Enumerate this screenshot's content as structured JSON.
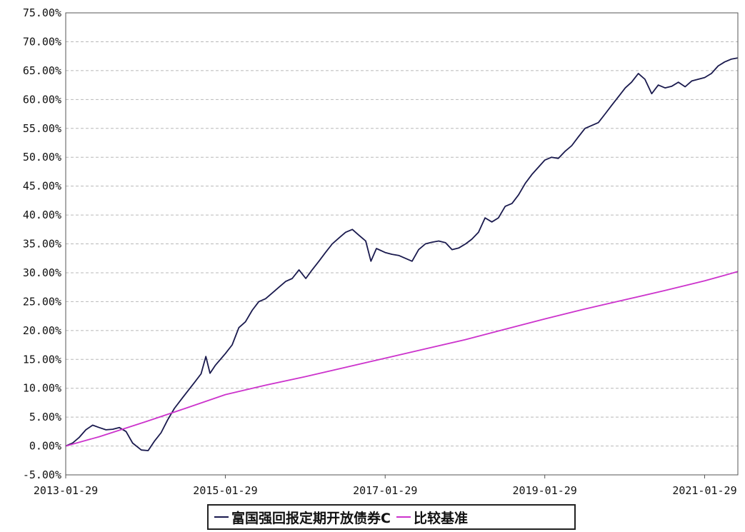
{
  "chart_data": {
    "type": "line",
    "title": "",
    "xlabel": "",
    "ylabel": "",
    "x_range": [
      "2013-01-29",
      "2021-06-30"
    ],
    "ylim": [
      -5,
      75
    ],
    "y_ticks": [
      "75.00%",
      "70.00%",
      "65.00%",
      "60.00%",
      "55.00%",
      "50.00%",
      "45.00%",
      "40.00%",
      "35.00%",
      "30.00%",
      "25.00%",
      "20.00%",
      "15.00%",
      "10.00%",
      "5.00%",
      "0.00%",
      "-5.00%"
    ],
    "x_ticks": [
      "2013-01-29",
      "2015-01-29",
      "2017-01-29",
      "2019-01-29",
      "2021-01-29"
    ],
    "grid": "horizontal dashed",
    "legend_position": "bottom",
    "series": [
      {
        "name": "富国强回报定期开放债券C",
        "color": "#1a1a4e",
        "points": [
          [
            "2013-01-29",
            0.0
          ],
          [
            "2013-03-01",
            0.5
          ],
          [
            "2013-04-01",
            1.5
          ],
          [
            "2013-05-01",
            2.8
          ],
          [
            "2013-06-01",
            3.6
          ],
          [
            "2013-07-01",
            3.2
          ],
          [
            "2013-08-01",
            2.8
          ],
          [
            "2013-09-01",
            2.9
          ],
          [
            "2013-10-01",
            3.2
          ],
          [
            "2013-11-01",
            2.5
          ],
          [
            "2013-12-01",
            0.5
          ],
          [
            "2014-01-10",
            -0.7
          ],
          [
            "2014-02-10",
            -0.8
          ],
          [
            "2014-03-10",
            0.8
          ],
          [
            "2014-04-10",
            2.3
          ],
          [
            "2014-05-10",
            4.5
          ],
          [
            "2014-06-10",
            6.5
          ],
          [
            "2014-07-10",
            8.0
          ],
          [
            "2014-08-10",
            9.5
          ],
          [
            "2014-09-10",
            11.0
          ],
          [
            "2014-10-10",
            12.5
          ],
          [
            "2014-11-01",
            15.5
          ],
          [
            "2014-11-20",
            12.6
          ],
          [
            "2014-12-15",
            14.0
          ],
          [
            "2015-01-29",
            16.0
          ],
          [
            "2015-03-01",
            17.5
          ],
          [
            "2015-04-01",
            20.5
          ],
          [
            "2015-05-01",
            21.5
          ],
          [
            "2015-06-01",
            23.5
          ],
          [
            "2015-07-01",
            25.0
          ],
          [
            "2015-08-01",
            25.5
          ],
          [
            "2015-09-01",
            26.5
          ],
          [
            "2015-10-01",
            27.5
          ],
          [
            "2015-11-01",
            28.5
          ],
          [
            "2015-12-01",
            29.0
          ],
          [
            "2016-01-01",
            30.5
          ],
          [
            "2016-02-01",
            29.0
          ],
          [
            "2016-03-01",
            30.5
          ],
          [
            "2016-04-01",
            32.0
          ],
          [
            "2016-05-01",
            33.5
          ],
          [
            "2016-06-01",
            35.0
          ],
          [
            "2016-07-01",
            36.0
          ],
          [
            "2016-08-01",
            37.0
          ],
          [
            "2016-09-01",
            37.5
          ],
          [
            "2016-10-01",
            36.5
          ],
          [
            "2016-11-01",
            35.5
          ],
          [
            "2016-11-25",
            32.0
          ],
          [
            "2016-12-20",
            34.2
          ],
          [
            "2017-01-29",
            33.5
          ],
          [
            "2017-03-01",
            33.2
          ],
          [
            "2017-04-01",
            33.0
          ],
          [
            "2017-05-01",
            32.5
          ],
          [
            "2017-06-01",
            32.0
          ],
          [
            "2017-07-01",
            34.0
          ],
          [
            "2017-08-01",
            35.0
          ],
          [
            "2017-09-01",
            35.3
          ],
          [
            "2017-10-01",
            35.5
          ],
          [
            "2017-11-01",
            35.2
          ],
          [
            "2017-12-01",
            34.0
          ],
          [
            "2018-01-01",
            34.3
          ],
          [
            "2018-02-01",
            35.0
          ],
          [
            "2018-03-01",
            35.8
          ],
          [
            "2018-04-01",
            37.0
          ],
          [
            "2018-05-01",
            39.5
          ],
          [
            "2018-06-01",
            38.8
          ],
          [
            "2018-07-01",
            39.5
          ],
          [
            "2018-08-01",
            41.5
          ],
          [
            "2018-09-01",
            42.0
          ],
          [
            "2018-10-01",
            43.5
          ],
          [
            "2018-11-01",
            45.5
          ],
          [
            "2018-12-01",
            47.0
          ],
          [
            "2019-01-29",
            49.5
          ],
          [
            "2019-03-01",
            50.0
          ],
          [
            "2019-04-01",
            49.8
          ],
          [
            "2019-05-01",
            51.0
          ],
          [
            "2019-06-01",
            52.0
          ],
          [
            "2019-07-01",
            53.5
          ],
          [
            "2019-08-01",
            55.0
          ],
          [
            "2019-09-01",
            55.5
          ],
          [
            "2019-10-01",
            56.0
          ],
          [
            "2019-11-01",
            57.5
          ],
          [
            "2019-12-01",
            59.0
          ],
          [
            "2020-01-01",
            60.5
          ],
          [
            "2020-02-01",
            62.0
          ],
          [
            "2020-03-01",
            63.0
          ],
          [
            "2020-04-01",
            64.5
          ],
          [
            "2020-05-01",
            63.5
          ],
          [
            "2020-06-01",
            61.0
          ],
          [
            "2020-07-01",
            62.5
          ],
          [
            "2020-08-01",
            62.0
          ],
          [
            "2020-09-01",
            62.3
          ],
          [
            "2020-10-01",
            63.0
          ],
          [
            "2020-11-01",
            62.2
          ],
          [
            "2020-12-01",
            63.2
          ],
          [
            "2021-01-29",
            63.8
          ],
          [
            "2021-03-01",
            64.5
          ],
          [
            "2021-04-01",
            65.8
          ],
          [
            "2021-05-01",
            66.5
          ],
          [
            "2021-06-01",
            67.0
          ],
          [
            "2021-06-30",
            67.2
          ]
        ]
      },
      {
        "name": "比较基准",
        "color": "#cc33cc",
        "points": [
          [
            "2013-01-29",
            0.0
          ],
          [
            "2013-07-01",
            1.6
          ],
          [
            "2014-01-29",
            4.2
          ],
          [
            "2014-07-29",
            6.5
          ],
          [
            "2015-01-29",
            8.9
          ],
          [
            "2015-07-29",
            10.5
          ],
          [
            "2016-01-29",
            12.0
          ],
          [
            "2016-07-29",
            13.6
          ],
          [
            "2017-01-29",
            15.2
          ],
          [
            "2017-07-29",
            16.8
          ],
          [
            "2018-01-29",
            18.4
          ],
          [
            "2018-07-29",
            20.2
          ],
          [
            "2019-01-29",
            22.0
          ],
          [
            "2019-07-29",
            23.7
          ],
          [
            "2020-01-29",
            25.3
          ],
          [
            "2020-07-29",
            26.9
          ],
          [
            "2021-01-29",
            28.6
          ],
          [
            "2021-06-30",
            30.2
          ]
        ]
      }
    ]
  }
}
